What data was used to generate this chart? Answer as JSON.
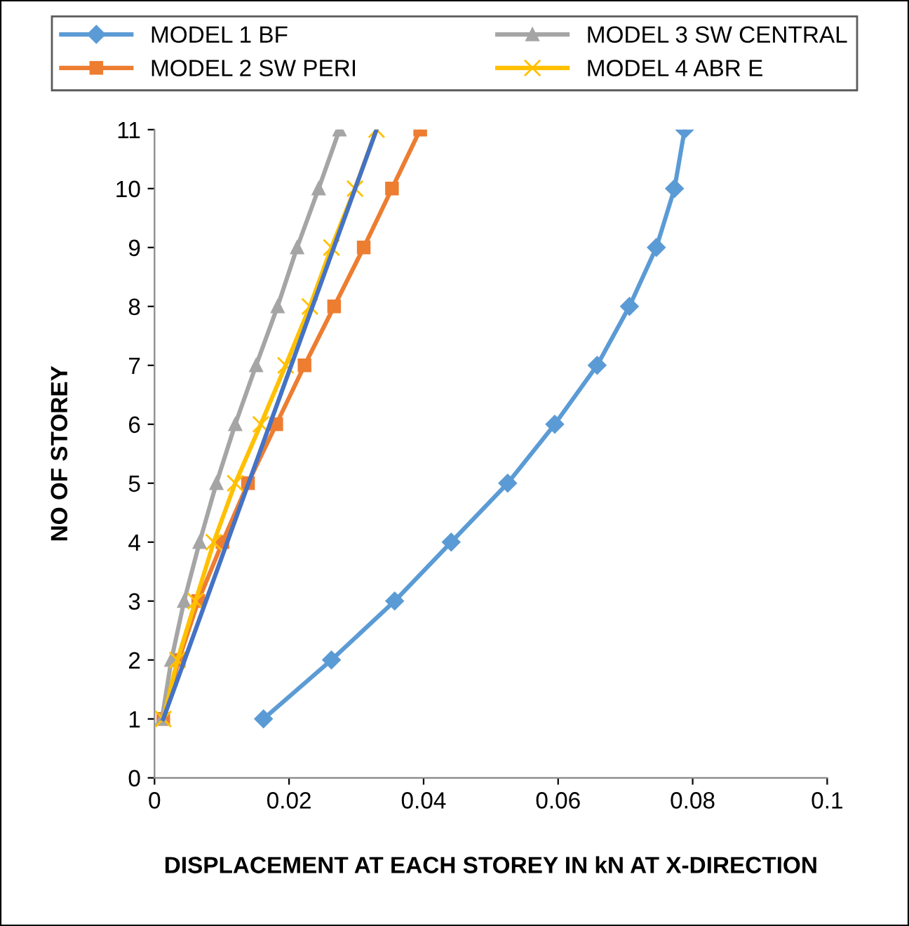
{
  "chart_data": {
    "type": "line",
    "xlabel": "DISPLACEMENT AT EACH STOREY IN kN AT X-DIRECTION",
    "ylabel": "NO OF STOREY",
    "xlim": [
      0,
      0.1
    ],
    "ylim": [
      0,
      11
    ],
    "xticks": [
      0,
      0.02,
      0.04,
      0.06,
      0.08,
      0.1
    ],
    "yticks": [
      0,
      1,
      2,
      3,
      4,
      5,
      6,
      7,
      8,
      9,
      10,
      11
    ],
    "grid": false,
    "legend": "top",
    "series": [
      {
        "name": "MODEL 1 BF",
        "color": "#5b9bd5",
        "marker": "diamond",
        "x": [
          0.0162,
          0.0263,
          0.0357,
          0.0441,
          0.0525,
          0.0595,
          0.0658,
          0.0706,
          0.0746,
          0.0773,
          0.0788
        ],
        "values": [
          1,
          2,
          3,
          4,
          5,
          6,
          7,
          8,
          9,
          10,
          11
        ]
      },
      {
        "name": "MODEL 2 SW PERI",
        "color": "#ed7d31",
        "marker": "square",
        "x": [
          0.0013,
          0.0036,
          0.0065,
          0.0101,
          0.0139,
          0.0181,
          0.0223,
          0.0267,
          0.0311,
          0.0353,
          0.0395
        ],
        "values": [
          1,
          2,
          3,
          4,
          5,
          6,
          7,
          8,
          9,
          10,
          11
        ]
      },
      {
        "name": "MODEL 3 SW CENTRAL",
        "color": "#a5a5a5",
        "marker": "triangle",
        "x": [
          0.0011,
          0.0025,
          0.0044,
          0.0067,
          0.0092,
          0.012,
          0.0151,
          0.0183,
          0.0212,
          0.0244,
          0.0275
        ],
        "values": [
          1,
          2,
          3,
          4,
          5,
          6,
          7,
          8,
          9,
          10,
          11
        ]
      },
      {
        "name": "MODEL 4 ABR E",
        "color": "#ffc000",
        "marker": "cross",
        "x": [
          0.0013,
          0.0034,
          0.0061,
          0.0088,
          0.012,
          0.0158,
          0.0195,
          0.0231,
          0.0263,
          0.0298,
          0.033
        ],
        "values": [
          1,
          2,
          3,
          4,
          5,
          6,
          7,
          8,
          9,
          10,
          11
        ]
      },
      {
        "color": "#4472c4",
        "marker": "none",
        "x": [
          0.0013,
          0.033
        ],
        "values": [
          1,
          11
        ]
      }
    ]
  }
}
